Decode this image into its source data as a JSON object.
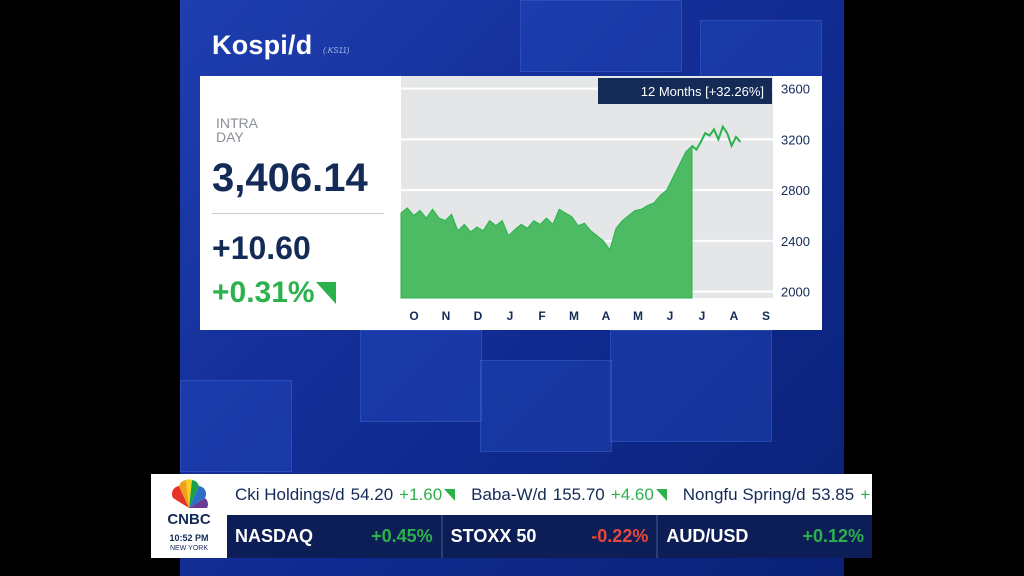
{
  "quote": {
    "title": "Kospi/d",
    "subtitle": "(.KS11)",
    "intraday_label": "INTRA DAY",
    "price": "3,406.14",
    "change": "+10.60",
    "change_pct": "+0.31%",
    "period_label": "12 Months [+32.26%]"
  },
  "colors": {
    "up": "#2bb24c",
    "down": "#e8473b",
    "navy": "#142a57",
    "chart_fill": "#4dbb63",
    "chart_line": "#2bb24c"
  },
  "chart_data": {
    "type": "area",
    "x_labels": [
      "O",
      "N",
      "D",
      "J",
      "F",
      "M",
      "A",
      "M",
      "J",
      "J",
      "A",
      "S"
    ],
    "y_ticks": [
      2000,
      2400,
      2800,
      3200,
      3600
    ],
    "ylim": [
      1950,
      3700
    ],
    "series": [
      {
        "values": [
          2620,
          2660,
          2600,
          2640,
          2580,
          2650,
          2580,
          2560,
          2610,
          2480,
          2530,
          2470,
          2510,
          2480,
          2560,
          2520,
          2560,
          2440,
          2490,
          2530,
          2500,
          2560,
          2530,
          2580,
          2530,
          2650,
          2620,
          2590,
          2520,
          2540,
          2480,
          2440,
          2400,
          2330,
          2500,
          2560,
          2600,
          2640,
          2650,
          2680,
          2700,
          2760,
          2800,
          2900,
          3000,
          3100,
          3150
        ]
      },
      {
        "values": [
          3150,
          3120,
          3180,
          3250,
          3230,
          3280,
          3200,
          3300,
          3250,
          3150,
          3220,
          3180
        ]
      }
    ]
  },
  "ticker": {
    "logo_text": "CNBC",
    "time": "10:52 PM",
    "city": "NEW YORK",
    "row1": [
      {
        "name": "Cki Holdings/d",
        "price": "54.20",
        "change": "+1.60"
      },
      {
        "name": "Baba-W/d",
        "price": "155.70",
        "change": "+4.60"
      },
      {
        "name": "Nongfu Spring/d",
        "price": "53.85",
        "change": "+"
      }
    ],
    "row2": [
      {
        "name": "NASDAQ",
        "change": "+0.45%",
        "dir": "pos"
      },
      {
        "name": "STOXX 50",
        "change": "-0.22%",
        "dir": "neg"
      },
      {
        "name": "AUD/USD",
        "change": "+0.12%",
        "dir": "pos"
      }
    ]
  }
}
